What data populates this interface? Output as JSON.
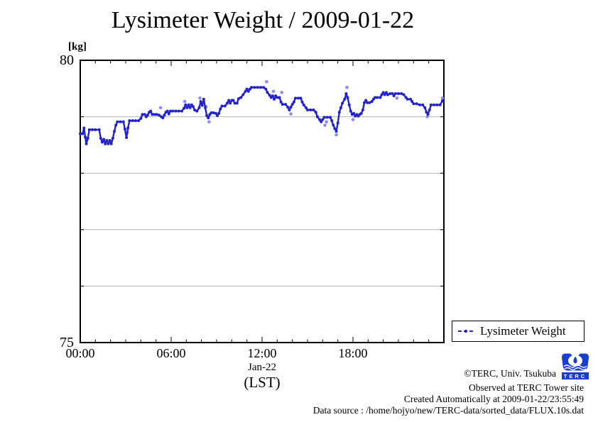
{
  "title": "Lysimeter Weight / 2009-01-22",
  "y_axis": {
    "unit": "[kg]",
    "top_label": "80",
    "bottom_label": "75"
  },
  "x_axis": {
    "tick_labels": [
      "00:00",
      "06:00",
      "12:00",
      "18:00"
    ],
    "date_label": "Jan-22",
    "tz_label": "(LST)"
  },
  "legend": {
    "label": "Lysimeter Weight"
  },
  "footer": {
    "line1": "©TERC, Univ. Tsukuba",
    "line2": "Observed at TERC Tower site",
    "line3": "Created Automatically at 2009-01-22/23:55:49",
    "line4": "Data source : /home/hojyo/new/TERC-data/sorted_data/FLUX.10s.dat",
    "logo_text": "TERC"
  },
  "chart_data": {
    "type": "line",
    "title": "Lysimeter Weight / 2009-01-22",
    "xlabel": "Jan-22 (LST)",
    "ylabel": "[kg]",
    "xlim": [
      0,
      24
    ],
    "ylim": [
      75,
      80
    ],
    "x_major_ticks": [
      0,
      6,
      12,
      18,
      24
    ],
    "x_minor_tick_step_hours": 1,
    "gridlines": [
      76,
      77,
      78,
      79
    ],
    "grid_on": true,
    "legend_position": "bottom-right",
    "grid_color": "#b4b4b4",
    "axis_color": "#000000",
    "line_color": "#2222cc",
    "outlier_color": "#8c8ce8",
    "series": [
      {
        "name": "Lysimeter Weight",
        "points": [
          [
            0,
            78.7
          ],
          [
            0.15,
            78.7
          ],
          [
            0.25,
            78.8
          ],
          [
            0.33,
            78.64
          ],
          [
            0.4,
            78.52
          ],
          [
            0.5,
            78.62
          ],
          [
            0.6,
            78.77
          ],
          [
            0.8,
            78.77
          ],
          [
            1,
            78.77
          ],
          [
            1.25,
            78.77
          ],
          [
            1.35,
            78.62
          ],
          [
            1.45,
            78.55
          ],
          [
            1.55,
            78.6
          ],
          [
            1.65,
            78.52
          ],
          [
            1.75,
            78.58
          ],
          [
            1.85,
            78.52
          ],
          [
            1.95,
            78.58
          ],
          [
            2.05,
            78.52
          ],
          [
            2.15,
            78.62
          ],
          [
            2.25,
            78.74
          ],
          [
            2.35,
            78.85
          ],
          [
            2.45,
            78.91
          ],
          [
            2.65,
            78.91
          ],
          [
            2.85,
            78.91
          ],
          [
            2.95,
            78.78
          ],
          [
            3.05,
            78.63
          ],
          [
            3.15,
            78.8
          ],
          [
            3.25,
            78.93
          ],
          [
            3.45,
            78.93
          ],
          [
            3.65,
            78.93
          ],
          [
            3.85,
            78.93
          ],
          [
            4,
            78.97
          ],
          [
            4.1,
            79.04
          ],
          [
            4.25,
            79.04
          ],
          [
            4.35,
            79
          ],
          [
            4.45,
            79.03
          ],
          [
            4.55,
            79.08
          ],
          [
            4.65,
            79.1
          ],
          [
            4.75,
            79.04
          ],
          [
            4.9,
            79.04
          ],
          [
            5.05,
            79.04
          ],
          [
            5.2,
            79.03
          ],
          [
            5.35,
            79
          ],
          [
            5.45,
            78.98
          ],
          [
            5.55,
            79.03
          ],
          [
            5.65,
            79.08
          ],
          [
            5.75,
            79.1
          ],
          [
            5.85,
            79.05
          ],
          [
            5.95,
            79.1
          ],
          [
            6.1,
            79.1
          ],
          [
            6.3,
            79.1
          ],
          [
            6.5,
            79.1
          ],
          [
            6.7,
            79.1
          ],
          [
            6.85,
            79.15
          ],
          [
            6.95,
            79.21
          ],
          [
            7.05,
            79.16
          ],
          [
            7.15,
            79.21
          ],
          [
            7.25,
            79.16
          ],
          [
            7.35,
            79.21
          ],
          [
            7.45,
            79.18
          ],
          [
            7.55,
            79.12
          ],
          [
            7.7,
            79.1
          ],
          [
            7.85,
            79.16
          ],
          [
            7.95,
            79.27
          ],
          [
            8.05,
            79.2
          ],
          [
            8.15,
            79.31
          ],
          [
            8.25,
            79.16
          ],
          [
            8.35,
            79.02
          ],
          [
            8.45,
            78.98
          ],
          [
            8.55,
            79.04
          ],
          [
            8.65,
            79.07
          ],
          [
            8.8,
            79.07
          ],
          [
            8.95,
            79.06
          ],
          [
            9.05,
            79.02
          ],
          [
            9.15,
            79.06
          ],
          [
            9.25,
            79.14
          ],
          [
            9.35,
            79.19
          ],
          [
            9.55,
            79.19
          ],
          [
            9.7,
            79.24
          ],
          [
            9.8,
            79.29
          ],
          [
            9.9,
            79.24
          ],
          [
            10,
            79.29
          ],
          [
            10.1,
            79.29
          ],
          [
            10.2,
            79.24
          ],
          [
            10.35,
            79.24
          ],
          [
            10.45,
            79.32
          ],
          [
            10.6,
            79.34
          ],
          [
            10.75,
            79.39
          ],
          [
            10.9,
            79.45
          ],
          [
            11,
            79.49
          ],
          [
            11.1,
            79.45
          ],
          [
            11.2,
            79.49
          ],
          [
            11.3,
            79.52
          ],
          [
            11.5,
            79.52
          ],
          [
            11.7,
            79.52
          ],
          [
            11.9,
            79.52
          ],
          [
            12.1,
            79.52
          ],
          [
            12.25,
            79.49
          ],
          [
            12.35,
            79.43
          ],
          [
            12.5,
            79.38
          ],
          [
            12.6,
            79.34
          ],
          [
            12.7,
            79.37
          ],
          [
            12.8,
            79.31
          ],
          [
            12.9,
            79.37
          ],
          [
            13,
            79.34
          ],
          [
            13.15,
            79.34
          ],
          [
            13.25,
            79.26
          ],
          [
            13.35,
            79.22
          ],
          [
            13.55,
            79.22
          ],
          [
            13.7,
            79.17
          ],
          [
            13.8,
            79.12
          ],
          [
            13.9,
            79.17
          ],
          [
            14,
            79.22
          ],
          [
            14.1,
            79.26
          ],
          [
            14.2,
            79.33
          ],
          [
            14.4,
            79.33
          ],
          [
            14.55,
            79.33
          ],
          [
            14.65,
            79.26
          ],
          [
            14.75,
            79.21
          ],
          [
            14.9,
            79.16
          ],
          [
            15,
            79.12
          ],
          [
            15.2,
            79.12
          ],
          [
            15.4,
            79.12
          ],
          [
            15.55,
            79.08
          ],
          [
            15.65,
            79
          ],
          [
            15.8,
            78.95
          ],
          [
            15.9,
            78.91
          ],
          [
            16,
            78.95
          ],
          [
            16.1,
            78.99
          ],
          [
            16.3,
            78.99
          ],
          [
            16.5,
            78.99
          ],
          [
            16.6,
            78.93
          ],
          [
            16.7,
            78.85
          ],
          [
            16.8,
            78.79
          ],
          [
            16.9,
            78.74
          ],
          [
            17,
            78.89
          ],
          [
            17.1,
            79.08
          ],
          [
            17.2,
            79.16
          ],
          [
            17.3,
            79.24
          ],
          [
            17.45,
            79.31
          ],
          [
            17.55,
            79.41
          ],
          [
            17.65,
            79.34
          ],
          [
            17.75,
            79.21
          ],
          [
            17.85,
            79.1
          ],
          [
            17.95,
            79.04
          ],
          [
            18.05,
            79.06
          ],
          [
            18.15,
            79.01
          ],
          [
            18.25,
            79.04
          ],
          [
            18.35,
            79.01
          ],
          [
            18.45,
            79.04
          ],
          [
            18.55,
            79.06
          ],
          [
            18.65,
            79.12
          ],
          [
            18.75,
            79.25
          ],
          [
            18.85,
            79.29
          ],
          [
            18.95,
            79.25
          ],
          [
            19.1,
            79.25
          ],
          [
            19.25,
            79.27
          ],
          [
            19.35,
            79.31
          ],
          [
            19.45,
            79.34
          ],
          [
            19.6,
            79.34
          ],
          [
            19.8,
            79.34
          ],
          [
            19.9,
            79.39
          ],
          [
            20,
            79.43
          ],
          [
            20.1,
            79.39
          ],
          [
            20.2,
            79.43
          ],
          [
            20.3,
            79.39
          ],
          [
            20.45,
            79.41
          ],
          [
            20.6,
            79.41
          ],
          [
            20.7,
            79.37
          ],
          [
            20.8,
            79.41
          ],
          [
            21,
            79.41
          ],
          [
            21.2,
            79.41
          ],
          [
            21.35,
            79.39
          ],
          [
            21.5,
            79.34
          ],
          [
            21.6,
            79.31
          ],
          [
            21.8,
            79.31
          ],
          [
            21.9,
            79.27
          ],
          [
            22,
            79.23
          ],
          [
            22.2,
            79.23
          ],
          [
            22.4,
            79.21
          ],
          [
            22.6,
            79.21
          ],
          [
            22.75,
            79.16
          ],
          [
            22.85,
            79.08
          ],
          [
            22.95,
            79.04
          ],
          [
            23.05,
            79.12
          ],
          [
            23.15,
            79.21
          ],
          [
            23.35,
            79.21
          ],
          [
            23.55,
            79.21
          ],
          [
            23.75,
            79.21
          ],
          [
            23.9,
            79.28
          ]
        ]
      }
    ],
    "outliers": [
      [
        0.45,
        78.6
      ],
      [
        3.1,
        78.72
      ],
      [
        5.3,
        79.16
      ],
      [
        6.9,
        79.27
      ],
      [
        7.9,
        79.33
      ],
      [
        8.3,
        79.18
      ],
      [
        8.5,
        78.91
      ],
      [
        12.3,
        79.62
      ],
      [
        12.75,
        79.45
      ],
      [
        13.3,
        79.43
      ],
      [
        13.9,
        79.05
      ],
      [
        16.15,
        78.85
      ],
      [
        16.25,
        78.91
      ],
      [
        16.9,
        78.68
      ],
      [
        17.6,
        79.52
      ],
      [
        18,
        78.95
      ],
      [
        20.9,
        79.33
      ],
      [
        22.9,
        79
      ],
      [
        23.9,
        79.33
      ]
    ]
  }
}
